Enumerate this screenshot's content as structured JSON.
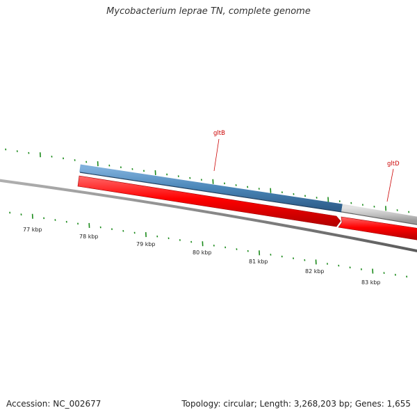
{
  "title": "Mycobacterium leprae TN, complete genome",
  "footer": {
    "accession": "Accession: NC_002677",
    "summary": "Topology: circular; Length: 3,268,203 bp; Genes: 1,655"
  },
  "colors": {
    "backbone": "#808080",
    "cds_forward": "#4a86b8",
    "cds_forward_light": "#c8c8c8",
    "gene_forward": "#ff0000",
    "tick": "#1a8a1a",
    "gene_label": "#cc0000"
  },
  "scale": {
    "unit": "kbp",
    "labels": [
      "77 kbp",
      "78 kbp",
      "79 kbp",
      "80 kbp",
      "81 kbp",
      "82 kbp",
      "83 kbp"
    ]
  },
  "genes": [
    {
      "name": "gltB"
    },
    {
      "name": "gltD"
    }
  ]
}
